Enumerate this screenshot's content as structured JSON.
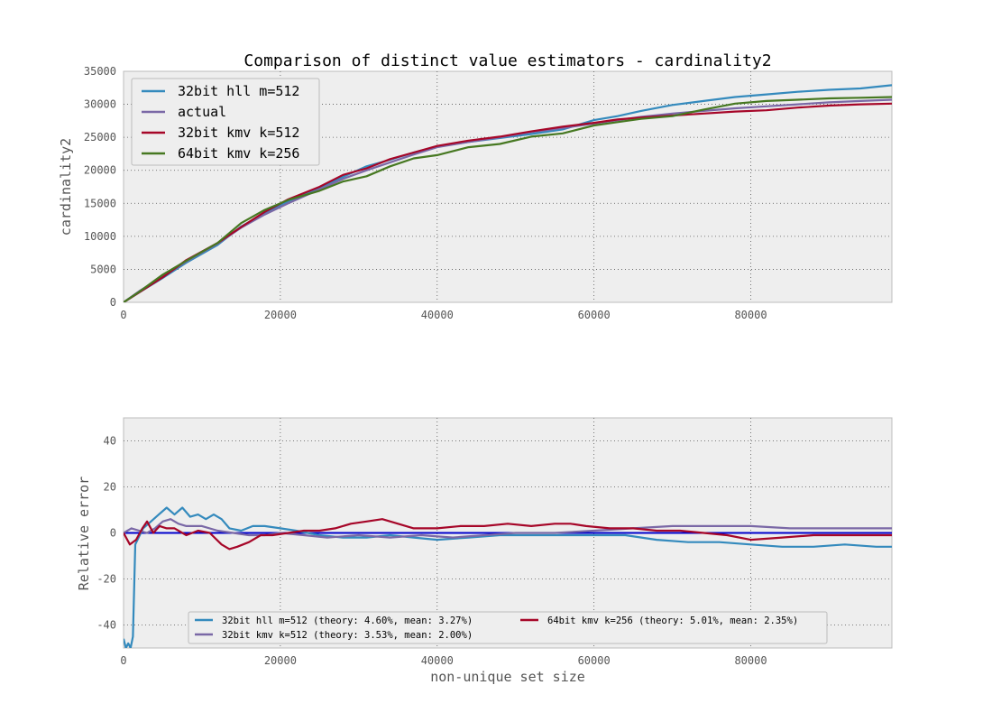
{
  "chart_data": [
    {
      "type": "line",
      "title": "Comparison of distinct value estimators - cardinality2",
      "xlabel": "",
      "ylabel": "cardinality2",
      "xlim": [
        0,
        98000
      ],
      "ylim": [
        0,
        35000
      ],
      "xticks": [
        0,
        20000,
        40000,
        60000,
        80000
      ],
      "yticks": [
        0,
        5000,
        10000,
        15000,
        20000,
        25000,
        30000,
        35000
      ],
      "grid": true,
      "legend_position": "top-left",
      "series": [
        {
          "name": "32bit hll m=512",
          "color": "#348ABD",
          "x": [
            0,
            2000,
            5000,
            8000,
            12000,
            15000,
            18000,
            21000,
            25000,
            28000,
            31000,
            34000,
            37000,
            40000,
            44000,
            48000,
            52000,
            56000,
            60000,
            63000,
            66000,
            70000,
            74000,
            78000,
            82000,
            86000,
            90000,
            94000,
            98000
          ],
          "y": [
            0,
            1500,
            3700,
            6000,
            8700,
            11500,
            13500,
            15300,
            17400,
            19000,
            20600,
            21600,
            22700,
            23600,
            24300,
            24900,
            25500,
            26200,
            27600,
            28200,
            29000,
            29900,
            30500,
            31100,
            31500,
            31900,
            32200,
            32400,
            32900
          ]
        },
        {
          "name": "actual",
          "color": "#7A68A6",
          "x": [
            0,
            2000,
            5000,
            8000,
            12000,
            15000,
            18000,
            21000,
            25000,
            28000,
            31000,
            34000,
            37000,
            40000,
            44000,
            48000,
            52000,
            56000,
            60000,
            63000,
            66000,
            70000,
            74000,
            78000,
            82000,
            86000,
            90000,
            94000,
            98000
          ],
          "y": [
            0,
            1700,
            3900,
            6200,
            8900,
            11300,
            13300,
            15000,
            17100,
            18700,
            20000,
            21200,
            22400,
            23500,
            24300,
            25000,
            25800,
            26400,
            27100,
            27600,
            28100,
            28600,
            29000,
            29400,
            29700,
            30000,
            30300,
            30500,
            30700
          ]
        },
        {
          "name": "32bit kmv k=512",
          "color": "#A60628",
          "x": [
            0,
            2000,
            5000,
            8000,
            12000,
            15000,
            18000,
            21000,
            25000,
            28000,
            31000,
            34000,
            37000,
            40000,
            44000,
            48000,
            52000,
            56000,
            60000,
            63000,
            66000,
            70000,
            74000,
            78000,
            82000,
            86000,
            90000,
            94000,
            98000
          ],
          "y": [
            0,
            1500,
            3800,
            6400,
            9000,
            11400,
            13700,
            15600,
            17500,
            19300,
            20300,
            21700,
            22700,
            23700,
            24500,
            25100,
            25900,
            26600,
            27200,
            27700,
            28000,
            28300,
            28600,
            28900,
            29100,
            29500,
            29800,
            30000,
            30100
          ]
        },
        {
          "name": "64bit kmv k=256",
          "color": "#467821",
          "x": [
            0,
            2000,
            5000,
            8000,
            12000,
            15000,
            18000,
            21000,
            25000,
            28000,
            31000,
            34000,
            37000,
            40000,
            44000,
            48000,
            52000,
            56000,
            60000,
            63000,
            66000,
            70000,
            74000,
            78000,
            82000,
            86000,
            90000,
            94000,
            98000
          ],
          "y": [
            0,
            1600,
            4200,
            6300,
            9000,
            12000,
            14000,
            15500,
            16900,
            18300,
            19100,
            20600,
            21800,
            22300,
            23500,
            24000,
            25100,
            25600,
            26800,
            27300,
            27800,
            28200,
            29200,
            30100,
            30500,
            30700,
            30900,
            31000,
            31100
          ]
        }
      ]
    },
    {
      "type": "line",
      "title": "",
      "xlabel": "non-unique set size",
      "ylabel": "Relative error",
      "xlim": [
        0,
        98000
      ],
      "ylim": [
        -50,
        50
      ],
      "xticks": [
        0,
        20000,
        40000,
        60000,
        80000
      ],
      "yticks": [
        -40,
        -20,
        0,
        20,
        40
      ],
      "grid": true,
      "legend_position": "bottom-center",
      "reference_line": {
        "y": 0,
        "color": "#0000CC"
      },
      "series": [
        {
          "name": "32bit hll m=512 (theory: 4.60%, mean: 3.27%)",
          "color": "#348ABD",
          "x": [
            0,
            300,
            600,
            900,
            1200,
            1500,
            2500,
            3500,
            4500,
            5500,
            6500,
            7500,
            8500,
            9500,
            10500,
            11500,
            12500,
            13500,
            15000,
            16500,
            18000,
            20000,
            22000,
            25000,
            28000,
            31000,
            34000,
            37000,
            40000,
            44000,
            48000,
            52000,
            56000,
            60000,
            64000,
            68000,
            72000,
            76000,
            80000,
            84000,
            88000,
            92000,
            96000,
            98000
          ],
          "y": [
            -46,
            -50,
            -48,
            -50,
            -45,
            -5,
            2,
            5,
            8,
            11,
            8,
            11,
            7,
            8,
            6,
            8,
            6,
            2,
            1,
            3,
            3,
            2,
            1,
            -1,
            -2,
            -2,
            -1,
            -2,
            -3,
            -2,
            -1,
            -1,
            -1,
            -1,
            -1,
            -3,
            -4,
            -4,
            -5,
            -6,
            -6,
            -5,
            -6,
            -6
          ]
        },
        {
          "name": "32bit kmv k=512 (theory: 3.53%, mean: 2.00%)",
          "color": "#7A68A6",
          "x": [
            0,
            1000,
            2000,
            3000,
            4000,
            5000,
            6000,
            7000,
            8000,
            10000,
            12000,
            14000,
            16000,
            18000,
            20000,
            23000,
            26000,
            30000,
            34000,
            38000,
            42000,
            46000,
            50000,
            55000,
            60000,
            65000,
            70000,
            75000,
            80000,
            85000,
            90000,
            95000,
            98000
          ],
          "y": [
            0,
            2,
            1,
            0,
            2,
            5,
            6,
            4,
            3,
            3,
            1,
            0,
            -1,
            -1,
            0,
            -1,
            -2,
            -1,
            -2,
            -1,
            -2,
            -1,
            0,
            0,
            1,
            2,
            3,
            3,
            3,
            2,
            2,
            2,
            2
          ]
        },
        {
          "name": "64bit kmv k=256 (theory: 5.01%, mean: 2.35%)",
          "color": "#A60628",
          "x": [
            0,
            800,
            1600,
            2400,
            3000,
            3800,
            4600,
            5500,
            6500,
            8000,
            9500,
            11000,
            12500,
            13500,
            14500,
            16000,
            17500,
            19000,
            21000,
            23000,
            25000,
            27000,
            29000,
            31000,
            33000,
            35000,
            37000,
            40000,
            43000,
            46000,
            49000,
            52000,
            55000,
            57000,
            59000,
            62000,
            65000,
            68000,
            71000,
            74000,
            77000,
            80000,
            84000,
            88000,
            92000,
            96000,
            98000
          ],
          "y": [
            0,
            -5,
            -3,
            2,
            5,
            0,
            3,
            2,
            2,
            -1,
            1,
            0,
            -5,
            -7,
            -6,
            -4,
            -1,
            -1,
            0,
            1,
            1,
            2,
            4,
            5,
            6,
            4,
            2,
            2,
            3,
            3,
            4,
            3,
            4,
            4,
            3,
            2,
            2,
            1,
            1,
            0,
            -1,
            -3,
            -2,
            -1,
            -1,
            -1,
            -1
          ]
        }
      ]
    }
  ]
}
